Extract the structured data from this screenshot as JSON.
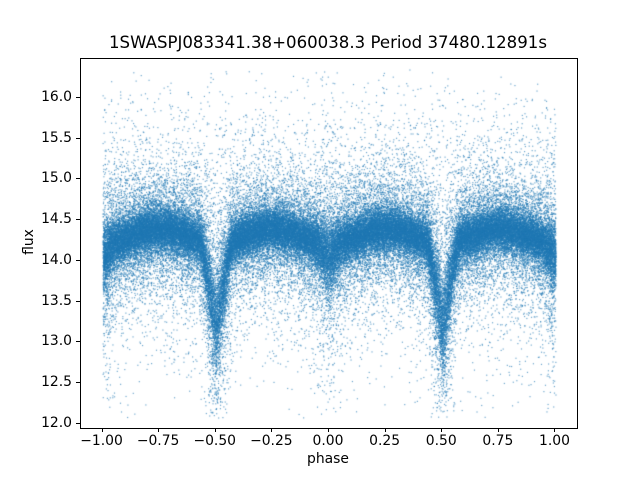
{
  "chart_data": {
    "type": "scatter",
    "title": "1SWASPJ083341.38+060038.3 Period 37480.12891s",
    "xlabel": "phase",
    "ylabel": "flux",
    "xlim": [
      -1.095,
      1.095
    ],
    "ylim": [
      11.951,
      16.478
    ],
    "xticks": [
      -1.0,
      -0.75,
      -0.5,
      -0.25,
      0.0,
      0.25,
      0.5,
      0.75,
      1.0
    ],
    "xtick_labels": [
      "−1.00",
      "−0.75",
      "−0.50",
      "−0.25",
      "0.00",
      "0.25",
      "0.50",
      "0.75",
      "1.00"
    ],
    "yticks": [
      12.0,
      12.5,
      13.0,
      13.5,
      14.0,
      14.5,
      15.0,
      15.5,
      16.0
    ],
    "ytick_labels": [
      "12.0",
      "12.5",
      "13.0",
      "13.5",
      "14.0",
      "14.5",
      "15.0",
      "15.5",
      "16.0"
    ],
    "grid": false,
    "legend": null,
    "marker_color": "#1f77b4",
    "marker_alpha": 0.7,
    "marker_size_px": 1.15,
    "n_points": 80000,
    "seed": 7,
    "model": {
      "description": "Phase-folded eclipsing-binary light curve, each cycle plotted twice over phase -1 to 1",
      "phase_range": [
        -1.0,
        1.0
      ],
      "baseline_flux": 14.22,
      "ellipsoidal_amplitude": 0.18,
      "primary_eclipse": {
        "phases": [
          -0.5,
          0.5
        ],
        "depth": 1.05,
        "half_width": 0.075,
        "shape_exponent": 1.3
      },
      "secondary_eclipse": {
        "phases": [
          -1.0,
          0.0,
          1.0
        ],
        "depth": 0.18,
        "half_width": 0.055
      },
      "noise": {
        "core_fraction": 0.6,
        "core_sigma": 0.125,
        "mid_fraction": 0.28,
        "mid_sigma": 0.33,
        "halo_fraction": 0.12,
        "halo_sigma": 0.75,
        "primary_eclipse_noise_boost": 1.3,
        "secondary_eclipse_noise_boost": 0.6,
        "boost_width": 0.045
      },
      "flux_clip": [
        12.08,
        16.35
      ]
    }
  }
}
